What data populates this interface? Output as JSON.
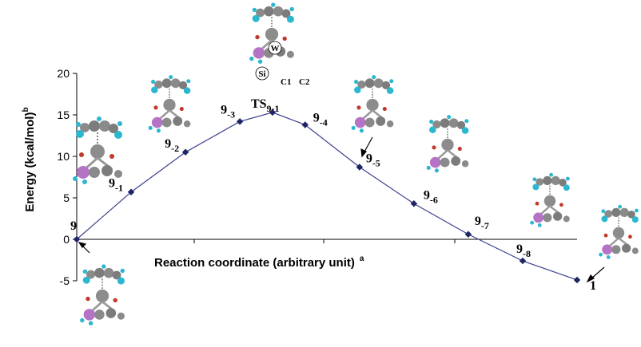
{
  "chart_data": {
    "type": "line",
    "ylabel": "Energy (kcal/mol)",
    "ylabel_sup": "b",
    "xlabel": "Reaction coordinate (arbitrary unit)",
    "xlabel_sup": "a",
    "ylim": [
      -5,
      20
    ],
    "yticks": [
      "-5",
      "0",
      "5",
      "10",
      "15",
      "20"
    ],
    "grid": false,
    "colors": {
      "line": "#3b3f8f",
      "marker": "#1f2466"
    },
    "points": [
      {
        "x": 0,
        "y": 0.0,
        "label": "9",
        "sub": ""
      },
      {
        "x": 1,
        "y": 5.7,
        "label": "9",
        "sub": "-1"
      },
      {
        "x": 2,
        "y": 10.5,
        "label": "9",
        "sub": "-2"
      },
      {
        "x": 3,
        "y": 14.2,
        "label": "9",
        "sub": "-3"
      },
      {
        "x": 3.6,
        "y": 15.3,
        "label": "TS",
        "sub": "9-1"
      },
      {
        "x": 4.2,
        "y": 13.8,
        "label": "9",
        "sub": "-4"
      },
      {
        "x": 5.2,
        "y": 8.7,
        "label": "9",
        "sub": "-5"
      },
      {
        "x": 6.2,
        "y": 4.3,
        "label": "9",
        "sub": "-6"
      },
      {
        "x": 7.2,
        "y": 0.6,
        "label": "9",
        "sub": "-7"
      },
      {
        "x": 8.2,
        "y": -2.6,
        "label": "9",
        "sub": "-8"
      },
      {
        "x": 9.2,
        "y": -4.9,
        "label": "1",
        "sub": ""
      }
    ],
    "structure_atom_labels": [
      "W",
      "Si",
      "C1",
      "C2"
    ]
  }
}
